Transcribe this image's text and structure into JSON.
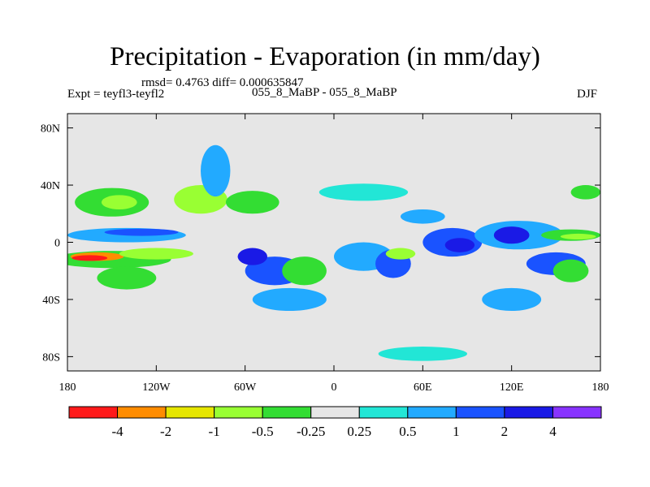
{
  "chart_data": {
    "type": "heatmap",
    "title": "Precipitation - Evaporation (in mm/day)",
    "stats_line": "rmsd= 0.4763 diff= 0.000635847",
    "experiment": "Expt = teyfl3-teyfl2",
    "comparison": "055_8_MaBP - 055_8_MaBP",
    "season": "DJF",
    "x_range": [
      -180,
      180
    ],
    "y_range": [
      -90,
      90
    ],
    "x_ticks": [
      {
        "value": -180,
        "label": "180"
      },
      {
        "value": -120,
        "label": "120W"
      },
      {
        "value": -60,
        "label": "60W"
      },
      {
        "value": 0,
        "label": "0"
      },
      {
        "value": 60,
        "label": "60E"
      },
      {
        "value": 120,
        "label": "120E"
      },
      {
        "value": 180,
        "label": "180"
      }
    ],
    "y_ticks": [
      {
        "value": 80,
        "label": "80N"
      },
      {
        "value": 40,
        "label": "40N"
      },
      {
        "value": 0,
        "label": "0"
      },
      {
        "value": -40,
        "label": "40S"
      },
      {
        "value": -80,
        "label": "80S"
      }
    ],
    "colorbar": {
      "colors": [
        "#ff1a1a",
        "#ff8c00",
        "#e6e600",
        "#99ff33",
        "#33dd33",
        "#e6e6e6",
        "#22e6d6",
        "#22aaff",
        "#1a53ff",
        "#1a1ae6",
        "#8833ff"
      ],
      "labels": [
        "-4",
        "-2",
        "-1",
        "-0.5",
        "-0.25",
        "0.25",
        "0.5",
        "1",
        "2",
        "4"
      ]
    },
    "background_color": "#e6e6e6",
    "field_blobs": [
      {
        "lon": -150,
        "lat": -12,
        "rlon": 40,
        "rlat": 6,
        "level": 4
      },
      {
        "lon": -160,
        "lat": -10,
        "rlon": 18,
        "rlat": 3,
        "level": 1
      },
      {
        "lon": -165,
        "lat": -11,
        "rlon": 12,
        "rlat": 2,
        "level": 0
      },
      {
        "lon": -120,
        "lat": -8,
        "rlon": 25,
        "rlat": 4,
        "level": 3
      },
      {
        "lon": -140,
        "lat": 5,
        "rlon": 40,
        "rlat": 5,
        "level": 7
      },
      {
        "lon": -130,
        "lat": 7,
        "rlon": 25,
        "rlat": 2.5,
        "level": 8
      },
      {
        "lon": -150,
        "lat": 28,
        "rlon": 25,
        "rlat": 10,
        "level": 4
      },
      {
        "lon": -145,
        "lat": 28,
        "rlon": 12,
        "rlat": 5,
        "level": 3
      },
      {
        "lon": -90,
        "lat": 30,
        "rlon": 18,
        "rlat": 10,
        "level": 3
      },
      {
        "lon": -55,
        "lat": 28,
        "rlon": 18,
        "rlat": 8,
        "level": 4
      },
      {
        "lon": -80,
        "lat": 50,
        "rlon": 10,
        "rlat": 18,
        "level": 7
      },
      {
        "lon": -40,
        "lat": -20,
        "rlon": 20,
        "rlat": 10,
        "level": 8
      },
      {
        "lon": -55,
        "lat": -10,
        "rlon": 10,
        "rlat": 6,
        "level": 9
      },
      {
        "lon": -20,
        "lat": -20,
        "rlon": 15,
        "rlat": 10,
        "level": 4
      },
      {
        "lon": -30,
        "lat": -40,
        "rlon": 25,
        "rlat": 8,
        "level": 7
      },
      {
        "lon": 20,
        "lat": -10,
        "rlon": 20,
        "rlat": 10,
        "level": 7
      },
      {
        "lon": 40,
        "lat": -15,
        "rlon": 12,
        "rlat": 10,
        "level": 8
      },
      {
        "lon": 45,
        "lat": -8,
        "rlon": 10,
        "rlat": 4,
        "level": 3
      },
      {
        "lon": 80,
        "lat": 0,
        "rlon": 20,
        "rlat": 10,
        "level": 8
      },
      {
        "lon": 85,
        "lat": -2,
        "rlon": 10,
        "rlat": 5,
        "level": 9
      },
      {
        "lon": 125,
        "lat": 5,
        "rlon": 30,
        "rlat": 10,
        "level": 7
      },
      {
        "lon": 120,
        "lat": 5,
        "rlon": 12,
        "rlat": 6,
        "level": 9
      },
      {
        "lon": 160,
        "lat": 5,
        "rlon": 20,
        "rlat": 4,
        "level": 4
      },
      {
        "lon": 165,
        "lat": 4,
        "rlon": 12,
        "rlat": 2,
        "level": 3
      },
      {
        "lon": 150,
        "lat": -15,
        "rlon": 20,
        "rlat": 8,
        "level": 8
      },
      {
        "lon": 160,
        "lat": -20,
        "rlon": 12,
        "rlat": 8,
        "level": 4
      },
      {
        "lon": 120,
        "lat": -40,
        "rlon": 20,
        "rlat": 8,
        "level": 7
      },
      {
        "lon": 20,
        "lat": 35,
        "rlon": 30,
        "rlat": 6,
        "level": 6
      },
      {
        "lon": 60,
        "lat": 18,
        "rlon": 15,
        "rlat": 5,
        "level": 7
      },
      {
        "lon": 60,
        "lat": -78,
        "rlon": 30,
        "rlat": 5,
        "level": 6
      },
      {
        "lon": -140,
        "lat": -25,
        "rlon": 20,
        "rlat": 8,
        "level": 4
      },
      {
        "lon": 170,
        "lat": 35,
        "rlon": 10,
        "rlat": 5,
        "level": 4
      }
    ]
  }
}
